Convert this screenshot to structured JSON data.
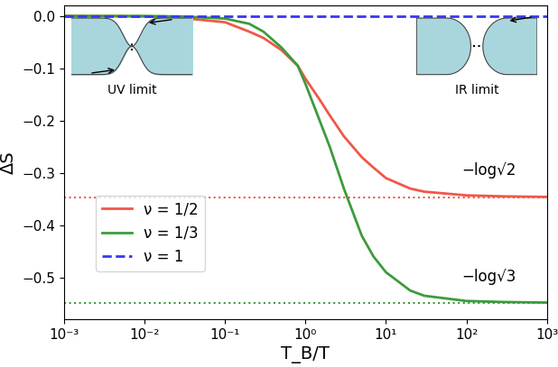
{
  "chart_data": {
    "type": "line",
    "x_label": "T_B/T",
    "y_label": "ΔS",
    "log": "x",
    "xlim": [
      0.001,
      1000
    ],
    "ylim": [
      -0.58,
      0.02
    ],
    "xticks": [
      {
        "value": 0.001,
        "label": "10⁻³"
      },
      {
        "value": 0.01,
        "label": "10⁻²"
      },
      {
        "value": 0.1,
        "label": "10⁻¹"
      },
      {
        "value": 1,
        "label": "10⁰"
      },
      {
        "value": 10,
        "label": "10¹"
      },
      {
        "value": 100,
        "label": "10²"
      },
      {
        "value": 1000,
        "label": "10³"
      }
    ],
    "yticks": [
      0.0,
      {
        "value": -0.1,
        "label": "−0.1"
      },
      {
        "value": -0.2,
        "label": "−0.2"
      },
      {
        "value": -0.3,
        "label": "−0.3"
      },
      {
        "value": -0.4,
        "label": "−0.4"
      },
      {
        "value": -0.5,
        "label": "−0.5"
      }
    ],
    "x": [
      0.001,
      0.01,
      0.03,
      0.1,
      0.2,
      0.3,
      0.5,
      0.8,
      1,
      1.5,
      2,
      3,
      5,
      7,
      10,
      20,
      30,
      100,
      300,
      1000
    ],
    "series": [
      {
        "name": "ν = 1/2",
        "color": "#f0574a",
        "line_style": "solid",
        "values": [
          0.0,
          -0.001,
          -0.004,
          -0.012,
          -0.03,
          -0.042,
          -0.065,
          -0.095,
          -0.12,
          -0.16,
          -0.19,
          -0.23,
          -0.27,
          -0.29,
          -0.31,
          -0.33,
          -0.336,
          -0.343,
          -0.345,
          -0.346
        ]
      },
      {
        "name": "ν = 1/3",
        "color": "#3c9b3c",
        "line_style": "solid",
        "values": [
          0.0,
          0.0,
          -0.001,
          -0.005,
          -0.015,
          -0.03,
          -0.06,
          -0.095,
          -0.13,
          -0.2,
          -0.25,
          -0.33,
          -0.42,
          -0.46,
          -0.49,
          -0.525,
          -0.535,
          -0.545,
          -0.547,
          -0.548
        ]
      },
      {
        "name": "ν = 1",
        "color": "#3838f0",
        "line_style": "dashed",
        "values": [
          0.0,
          0.0,
          0.0,
          0.0,
          0.0,
          0.0,
          0.0,
          0.0,
          0.0,
          0.0,
          0.0,
          0.0,
          0.0,
          0.0,
          0.0,
          0.0,
          0.0,
          0.0,
          0.0,
          0.0
        ]
      }
    ],
    "reference_lines": [
      {
        "value": -0.3466,
        "label": "−log√2",
        "color": "#f0574a",
        "line_style": "dotted"
      },
      {
        "value": -0.5493,
        "label": "−log√3",
        "color": "#3c9b3c",
        "line_style": "dotted"
      }
    ],
    "insets": [
      {
        "label": "UV limit"
      },
      {
        "label": "IR limit"
      }
    ],
    "legend": "lower left",
    "grid": false
  }
}
